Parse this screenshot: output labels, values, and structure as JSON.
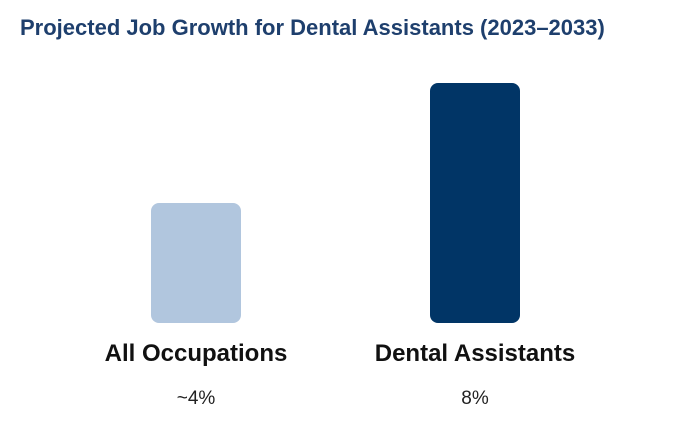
{
  "chart_data": {
    "type": "bar",
    "title": "Projected Job Growth for Dental Assistants (2023–2033)",
    "categories": [
      "All Occupations",
      "Dental Assistants"
    ],
    "values": [
      4,
      8
    ],
    "value_labels": [
      "~4%",
      "8%"
    ],
    "colors": [
      "#b1c6de",
      "#013566"
    ],
    "xlabel": "",
    "ylabel": "",
    "ylim": [
      0,
      8
    ],
    "grid": false,
    "legend": "none"
  },
  "colors": {
    "title": "#1e3f6d"
  }
}
